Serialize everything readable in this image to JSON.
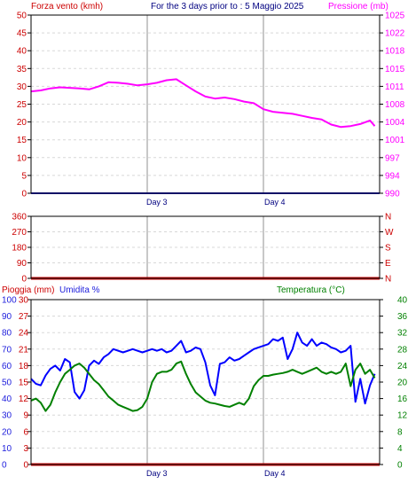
{
  "colors": {
    "wind": "#2222cc",
    "pressure": "#ff00ff",
    "dir_red": "#cc0000",
    "rain": "#cc0000",
    "humidity": "#0000ff",
    "humidity_axis": "#2020dd",
    "temperature": "#008000",
    "grid": "#d8d8d8",
    "day_line": "#c8c8c8",
    "axis": "#000000"
  },
  "chart_data": [
    {
      "id": "wind-pressure",
      "type": "line",
      "left_label": "Forza vento (kmh)",
      "center_label": "For the 3 days prior to : 5 Maggio 2025",
      "right_label": "Pressione (mb)",
      "day_labels": [
        "Day 3",
        "Day 4"
      ],
      "x_domain": [
        0,
        72
      ],
      "day_marks": [
        24,
        48
      ],
      "left_ticks": [
        "0",
        "5",
        "10",
        "15",
        "20",
        "25",
        "30",
        "35",
        "40",
        "45",
        "50"
      ],
      "right_ticks": [
        "990",
        "994",
        "997",
        "1001",
        "1004",
        "1008",
        "1011",
        "1015",
        "1018",
        "1022",
        "1025"
      ],
      "ylim_left": [
        0,
        50
      ],
      "ylim_right": [
        990,
        1025
      ],
      "series": [
        {
          "key": "wind",
          "axis": "left",
          "x": [
            0,
            72
          ],
          "values": [
            0,
            0
          ]
        },
        {
          "key": "pressure",
          "axis": "right",
          "x": [
            0,
            2,
            4,
            6,
            8,
            10,
            12,
            14,
            16,
            18,
            20,
            22,
            24,
            26,
            28,
            30,
            32,
            34,
            36,
            38,
            40,
            42,
            44,
            46,
            48,
            50,
            52,
            54,
            56,
            58,
            60,
            62,
            64,
            66,
            68,
            70,
            71
          ],
          "values": [
            1010.0,
            1010.2,
            1010.6,
            1010.8,
            1010.7,
            1010.6,
            1010.4,
            1011.0,
            1011.8,
            1011.7,
            1011.5,
            1011.2,
            1011.4,
            1011.7,
            1012.2,
            1012.4,
            1011.2,
            1010.0,
            1009.0,
            1008.6,
            1008.8,
            1008.5,
            1008.0,
            1007.7,
            1006.5,
            1006.0,
            1005.8,
            1005.6,
            1005.2,
            1004.8,
            1004.5,
            1003.5,
            1003.0,
            1003.2,
            1003.6,
            1004.3,
            1003.2
          ]
        }
      ]
    },
    {
      "id": "wind-direction",
      "type": "line",
      "left_ticks": [
        "0",
        "90",
        "180",
        "270",
        "360"
      ],
      "right_ticks": [
        "N",
        "E",
        "S",
        "W",
        "N"
      ],
      "ylim": [
        0,
        360
      ],
      "x_domain": [
        0,
        72
      ],
      "day_marks": [
        24,
        48
      ],
      "series": [
        {
          "key": "direction",
          "x": [
            0,
            72
          ],
          "values": [
            0,
            0
          ]
        }
      ]
    },
    {
      "id": "rain-humidity-temperature",
      "type": "line",
      "rain_label": "Pioggia (mm)",
      "humidity_label": "Umidita %",
      "temperature_label": "Temperatura (°C)",
      "day_labels": [
        "Day 3",
        "Day 4"
      ],
      "x_domain": [
        0,
        72
      ],
      "day_marks": [
        24,
        48
      ],
      "humidity_ticks": [
        "0",
        "10",
        "20",
        "30",
        "40",
        "50",
        "60",
        "70",
        "80",
        "90",
        "100"
      ],
      "rain_ticks": [
        "0",
        "3",
        "6",
        "9",
        "12",
        "15",
        "18",
        "21",
        "24",
        "27",
        "30"
      ],
      "temperature_ticks": [
        "0",
        "4",
        "8",
        "12",
        "16",
        "20",
        "24",
        "28",
        "32",
        "36",
        "40"
      ],
      "ylim_humidity": [
        0,
        100
      ],
      "ylim_rain": [
        0,
        30
      ],
      "ylim_temperature": [
        0,
        40
      ],
      "series": [
        {
          "key": "humidity",
          "axis": "humidity",
          "x": [
            0,
            1,
            2,
            3,
            4,
            5,
            6,
            7,
            8,
            9,
            10,
            11,
            12,
            13,
            14,
            15,
            16,
            17,
            18,
            19,
            20,
            21,
            22,
            23,
            24,
            25,
            26,
            27,
            28,
            29,
            30,
            31,
            32,
            33,
            34,
            35,
            36,
            37,
            38,
            39,
            40,
            41,
            42,
            43,
            44,
            45,
            46,
            47,
            48,
            49,
            50,
            51,
            52,
            53,
            54,
            55,
            56,
            57,
            58,
            59,
            60,
            61,
            62,
            63,
            64,
            65,
            66,
            67,
            68,
            69,
            70,
            71
          ],
          "values": [
            52,
            49,
            48,
            54,
            58,
            60,
            57,
            64,
            62,
            44,
            40,
            45,
            60,
            63,
            61,
            65,
            67,
            70,
            69,
            68,
            69,
            70,
            69,
            68,
            69,
            70,
            69,
            70,
            68,
            69,
            72,
            75,
            68,
            69,
            71,
            70,
            62,
            48,
            42,
            61,
            62,
            65,
            63,
            64,
            66,
            68,
            70,
            71,
            72,
            73,
            76,
            75,
            77,
            64,
            70,
            80,
            74,
            72,
            76,
            72,
            74,
            73,
            71,
            70,
            68,
            69,
            72,
            38,
            52,
            37,
            48,
            55
          ]
        },
        {
          "key": "temperature",
          "axis": "temperature",
          "x": [
            0,
            1,
            2,
            3,
            4,
            5,
            6,
            7,
            8,
            9,
            10,
            11,
            12,
            13,
            14,
            15,
            16,
            17,
            18,
            19,
            20,
            21,
            22,
            23,
            24,
            25,
            26,
            27,
            28,
            29,
            30,
            31,
            32,
            33,
            34,
            35,
            36,
            37,
            38,
            39,
            40,
            41,
            42,
            43,
            44,
            45,
            46,
            47,
            48,
            49,
            50,
            51,
            52,
            53,
            54,
            55,
            56,
            57,
            58,
            59,
            60,
            61,
            62,
            63,
            64,
            65,
            66,
            67,
            68,
            69,
            70,
            71
          ],
          "values": [
            15.5,
            16.0,
            15.0,
            13.0,
            14.5,
            17.5,
            20.0,
            22.0,
            23.0,
            24.0,
            24.5,
            23.5,
            22.0,
            20.5,
            19.5,
            18.0,
            16.5,
            15.5,
            14.5,
            14.0,
            13.5,
            13.0,
            13.2,
            14.0,
            16.0,
            20.0,
            22.0,
            22.5,
            22.5,
            23.0,
            24.5,
            25.0,
            22.0,
            19.5,
            17.5,
            16.5,
            15.5,
            15.0,
            14.8,
            14.5,
            14.2,
            14.0,
            14.5,
            15.0,
            14.5,
            16.0,
            19.0,
            20.5,
            21.5,
            21.5,
            21.8,
            22.0,
            22.2,
            22.5,
            23.0,
            22.5,
            22.0,
            22.5,
            23.0,
            23.5,
            22.5,
            22.0,
            22.5,
            22.0,
            22.5,
            24.5,
            19.0,
            23.0,
            24.5,
            22.0,
            23.0,
            21.0
          ]
        },
        {
          "key": "rain",
          "axis": "rain",
          "x": [
            0,
            72
          ],
          "values": [
            0,
            0
          ]
        }
      ]
    }
  ]
}
